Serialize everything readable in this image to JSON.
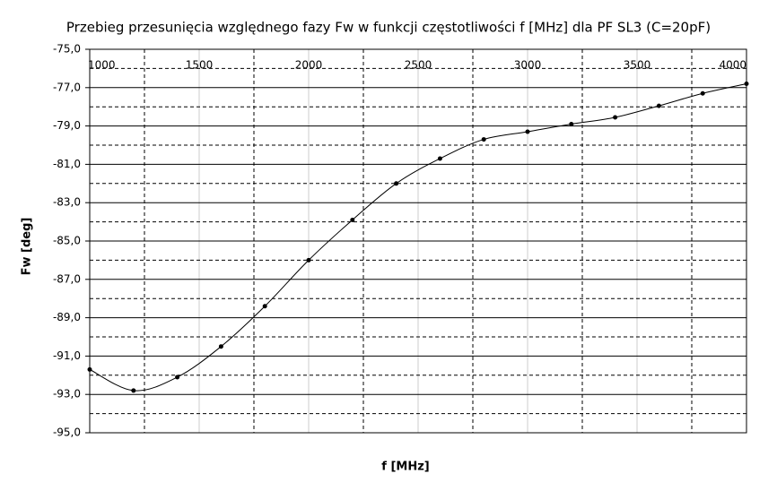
{
  "chart_data": {
    "type": "line",
    "title": "Przebieg przesunięcia względnego fazy Fw w funkcji częstotliwości f [MHz] dla PF SL3 (C=20pF)",
    "x_label": "f [MHz]",
    "y_label": "Fw [deg]",
    "x": [
      1000,
      1200,
      1400,
      1600,
      1800,
      2000,
      2200,
      2400,
      2600,
      2800,
      3000,
      3200,
      3400,
      3600,
      3800,
      4000
    ],
    "series": [
      {
        "name": "Fw",
        "color": "#000000",
        "values": [
          -91.7,
          -92.8,
          -92.1,
          -90.5,
          -88.4,
          -86.0,
          -83.9,
          -82.0,
          -80.7,
          -79.7,
          -79.3,
          -78.9,
          -78.55,
          -77.95,
          -77.3,
          -76.8
        ]
      }
    ],
    "xlim": [
      1000,
      4000
    ],
    "xticks": [
      1000,
      1500,
      2000,
      2500,
      3000,
      3500,
      4000
    ],
    "ylim": [
      -95,
      -75
    ],
    "yticks": [
      {
        "value": -95,
        "label": "-95,0"
      },
      {
        "value": -93,
        "label": "-93,0"
      },
      {
        "value": -91,
        "label": "-91,0"
      },
      {
        "value": -89,
        "label": "-89,0"
      },
      {
        "value": -87,
        "label": "-87,0"
      },
      {
        "value": -85,
        "label": "-85,0"
      },
      {
        "value": -83,
        "label": "-83,0"
      },
      {
        "value": -81,
        "label": "-81,0"
      },
      {
        "value": -79,
        "label": "-79,0"
      },
      {
        "value": -77,
        "label": "-77,0"
      },
      {
        "value": -75,
        "label": "-75,0"
      }
    ],
    "grid": true,
    "minor_grid": true,
    "markers": true
  }
}
